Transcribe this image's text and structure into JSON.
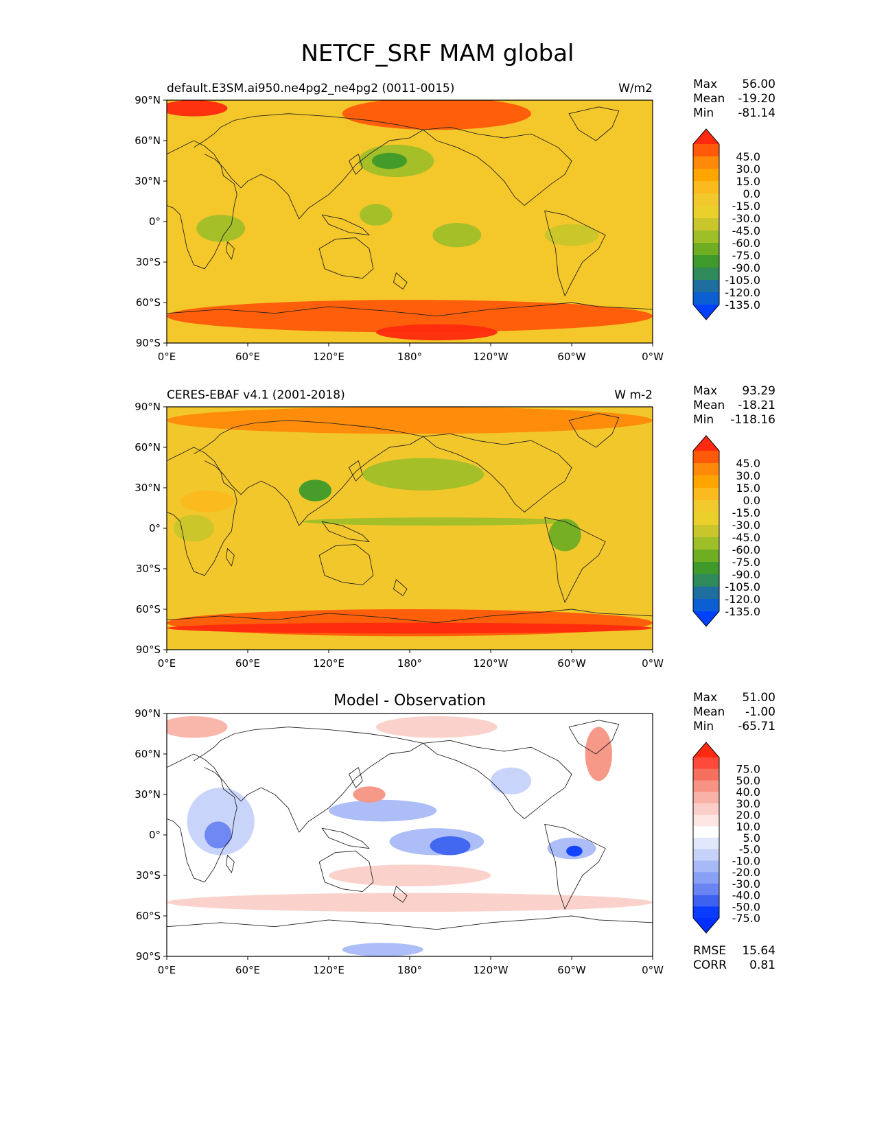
{
  "page": {
    "title": "NETCF_SRF MAM global"
  },
  "axes": {
    "x_ticks": [
      "0°E",
      "60°E",
      "120°E",
      "180°",
      "120°W",
      "60°W",
      "0°W"
    ],
    "y_ticks": [
      "90°N",
      "60°N",
      "30°N",
      "0°",
      "30°S",
      "60°S",
      "90°S"
    ]
  },
  "panels": [
    {
      "id": "model",
      "left_title": "default.E3SM.ai950.ne4pg2_ne4pg2 (0011-0015)",
      "center_title": "",
      "units": "W/m2",
      "stats": [
        {
          "label": "Max",
          "value": "56.00"
        },
        {
          "label": "Mean",
          "value": "-19.20"
        },
        {
          "label": "Min",
          "value": "-81.14"
        }
      ],
      "extra_stats": [],
      "colorbar": {
        "labels": [
          "45.0",
          "30.0",
          "15.0",
          "0.0",
          "-15.0",
          "-30.0",
          "-45.0",
          "-60.0",
          "-75.0",
          "-90.0",
          "-105.0",
          "-120.0",
          "-135.0"
        ],
        "colors": [
          "#ff2a0f",
          "#ff5a0a",
          "#ff8a0a",
          "#ffa500",
          "#fbba1e",
          "#f1c92c",
          "#ebcf2a",
          "#c8c62a",
          "#9fbf28",
          "#6fae23",
          "#3e9a2a",
          "#2e8a5a",
          "#1f6ea0",
          "#0b5fd2",
          "#0040ff"
        ]
      },
      "field": {
        "fill": "#f4c72a",
        "regions": [
          {
            "lon": 200,
            "lat": 80,
            "rx": 70,
            "ry": 12,
            "color": "#ff5a0a"
          },
          {
            "lon": 20,
            "lat": 84,
            "rx": 25,
            "ry": 6,
            "color": "#ff2a0f"
          },
          {
            "lon": 170,
            "lat": 45,
            "rx": 28,
            "ry": 12,
            "color": "#9fbf28"
          },
          {
            "lon": 165,
            "lat": 45,
            "rx": 13,
            "ry": 6,
            "color": "#3e9a2a"
          },
          {
            "lon": 155,
            "lat": 5,
            "rx": 12,
            "ry": 8,
            "color": "#9fbf28"
          },
          {
            "lon": 215,
            "lat": -10,
            "rx": 18,
            "ry": 9,
            "color": "#9fbf28"
          },
          {
            "lon": 40,
            "lat": -5,
            "rx": 18,
            "ry": 10,
            "color": "#9fbf28"
          },
          {
            "lon": 300,
            "lat": -10,
            "rx": 20,
            "ry": 8,
            "color": "#c8c62a"
          },
          {
            "lon": 180,
            "lat": -70,
            "rx": 180,
            "ry": 12,
            "color": "#ff5a0a"
          },
          {
            "lon": 200,
            "lat": -82,
            "rx": 45,
            "ry": 6,
            "color": "#ff2a0f"
          }
        ]
      }
    },
    {
      "id": "obs",
      "left_title": "CERES-EBAF v4.1 (2001-2018)",
      "center_title": "",
      "units": "W m-2",
      "stats": [
        {
          "label": "Max",
          "value": "93.29"
        },
        {
          "label": "Mean",
          "value": "-18.21"
        },
        {
          "label": "Min",
          "value": "-118.16"
        }
      ],
      "extra_stats": [],
      "colorbar": {
        "labels": [
          "45.0",
          "30.0",
          "15.0",
          "0.0",
          "-15.0",
          "-30.0",
          "-45.0",
          "-60.0",
          "-75.0",
          "-90.0",
          "-105.0",
          "-120.0",
          "-135.0"
        ],
        "colors": [
          "#ff2a0f",
          "#ff5a0a",
          "#ff8a0a",
          "#ffa500",
          "#fbba1e",
          "#f1c92c",
          "#ebcf2a",
          "#c8c62a",
          "#9fbf28",
          "#6fae23",
          "#3e9a2a",
          "#2e8a5a",
          "#1f6ea0",
          "#0b5fd2",
          "#0040ff"
        ]
      },
      "field": {
        "fill": "#f2c72c",
        "regions": [
          {
            "lon": 180,
            "lat": 80,
            "rx": 180,
            "ry": 10,
            "color": "#ff8a0a"
          },
          {
            "lon": 190,
            "lat": 40,
            "rx": 45,
            "ry": 12,
            "color": "#9fbf28"
          },
          {
            "lon": 110,
            "lat": 28,
            "rx": 12,
            "ry": 8,
            "color": "#3e9a2a"
          },
          {
            "lon": 200,
            "lat": 5,
            "rx": 100,
            "ry": 3,
            "color": "#9fbf28"
          },
          {
            "lon": 295,
            "lat": -5,
            "rx": 12,
            "ry": 12,
            "color": "#6fae23"
          },
          {
            "lon": 20,
            "lat": 0,
            "rx": 15,
            "ry": 10,
            "color": "#c8c62a"
          },
          {
            "lon": 30,
            "lat": 20,
            "rx": 20,
            "ry": 8,
            "color": "#fbba1e"
          },
          {
            "lon": 180,
            "lat": -70,
            "rx": 180,
            "ry": 10,
            "color": "#ff5a0a"
          },
          {
            "lon": 180,
            "lat": -74,
            "rx": 180,
            "ry": 4,
            "color": "#ff2a0f"
          }
        ]
      }
    },
    {
      "id": "diff",
      "left_title": "",
      "center_title": "Model - Observation",
      "units": "",
      "stats": [
        {
          "label": "Max",
          "value": "51.00"
        },
        {
          "label": "Mean",
          "value": "-1.00"
        },
        {
          "label": "Min",
          "value": "-65.71"
        }
      ],
      "extra_stats": [
        {
          "label": "RMSE",
          "value": "15.64"
        },
        {
          "label": "CORR",
          "value": "0.81"
        }
      ],
      "colorbar": {
        "labels": [
          "75.0",
          "50.0",
          "40.0",
          "30.0",
          "20.0",
          "10.0",
          "5.0",
          "-5.0",
          "-10.0",
          "-20.0",
          "-30.0",
          "-40.0",
          "-50.0",
          "-75.0"
        ],
        "colors": [
          "#ff2a0f",
          "#fe4a3a",
          "#f7705e",
          "#f79382",
          "#f9b2a7",
          "#fbcfc8",
          "#fde6e3",
          "#ffffff",
          "#e2e8fc",
          "#c6d2fa",
          "#a8b9f7",
          "#8aa0f4",
          "#6a84f1",
          "#3c62ef",
          "#0a3cff",
          "#0030ff"
        ]
      },
      "field": {
        "fill": "#ffffff",
        "regions": [
          {
            "lon": 20,
            "lat": 80,
            "rx": 25,
            "ry": 8,
            "color": "#f9b2a7"
          },
          {
            "lon": 200,
            "lat": 80,
            "rx": 45,
            "ry": 8,
            "color": "#fbcfc8"
          },
          {
            "lon": 40,
            "lat": 10,
            "rx": 25,
            "ry": 25,
            "color": "#c6d2fa"
          },
          {
            "lon": 38,
            "lat": 0,
            "rx": 10,
            "ry": 10,
            "color": "#6a84f1"
          },
          {
            "lon": 160,
            "lat": 18,
            "rx": 40,
            "ry": 8,
            "color": "#a8b9f7"
          },
          {
            "lon": 200,
            "lat": -5,
            "rx": 35,
            "ry": 10,
            "color": "#a8b9f7"
          },
          {
            "lon": 210,
            "lat": -8,
            "rx": 15,
            "ry": 7,
            "color": "#3c62ef"
          },
          {
            "lon": 300,
            "lat": -10,
            "rx": 18,
            "ry": 8,
            "color": "#a8b9f7"
          },
          {
            "lon": 302,
            "lat": -12,
            "rx": 6,
            "ry": 4,
            "color": "#0a3cff"
          },
          {
            "lon": 150,
            "lat": 30,
            "rx": 12,
            "ry": 6,
            "color": "#f79382"
          },
          {
            "lon": 180,
            "lat": -30,
            "rx": 60,
            "ry": 8,
            "color": "#fbcfc8"
          },
          {
            "lon": 180,
            "lat": -50,
            "rx": 180,
            "ry": 7,
            "color": "#fbcfc8"
          },
          {
            "lon": 160,
            "lat": -85,
            "rx": 30,
            "ry": 5,
            "color": "#a8b9f7"
          },
          {
            "lon": 320,
            "lat": 60,
            "rx": 10,
            "ry": 20,
            "color": "#f79382"
          },
          {
            "lon": 255,
            "lat": 40,
            "rx": 15,
            "ry": 10,
            "color": "#c6d2fa"
          }
        ]
      }
    }
  ]
}
